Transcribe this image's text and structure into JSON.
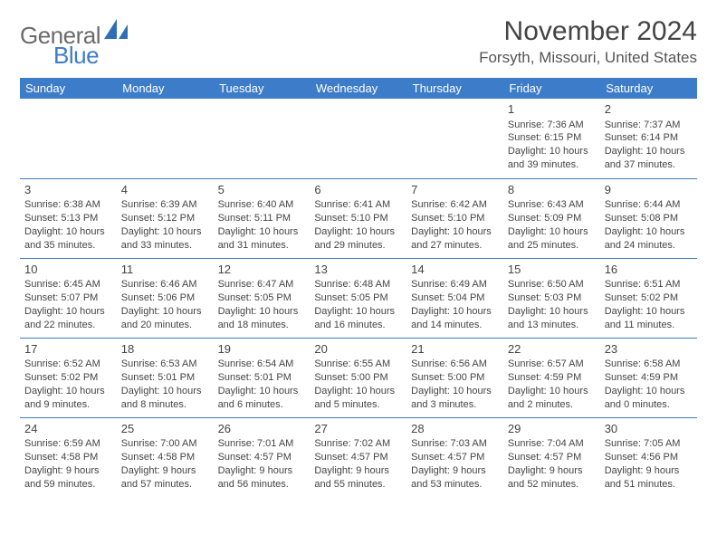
{
  "logo": {
    "general": "General",
    "blue": "Blue"
  },
  "title": "November 2024",
  "location": "Forsyth, Missouri, United States",
  "colors": {
    "header_bg": "#3d7cc9",
    "header_text": "#ffffff",
    "body_text": "#444444",
    "logo_gray": "#6b6b6b",
    "logo_blue": "#3d7cc9",
    "rule": "#3d7cc9",
    "page_bg": "#ffffff"
  },
  "weekdays": [
    "Sunday",
    "Monday",
    "Tuesday",
    "Wednesday",
    "Thursday",
    "Friday",
    "Saturday"
  ],
  "weeks": [
    [
      null,
      null,
      null,
      null,
      null,
      {
        "day": "1",
        "sunrise": "Sunrise: 7:36 AM",
        "sunset": "Sunset: 6:15 PM",
        "daylight": "Daylight: 10 hours and 39 minutes."
      },
      {
        "day": "2",
        "sunrise": "Sunrise: 7:37 AM",
        "sunset": "Sunset: 6:14 PM",
        "daylight": "Daylight: 10 hours and 37 minutes."
      }
    ],
    [
      {
        "day": "3",
        "sunrise": "Sunrise: 6:38 AM",
        "sunset": "Sunset: 5:13 PM",
        "daylight": "Daylight: 10 hours and 35 minutes."
      },
      {
        "day": "4",
        "sunrise": "Sunrise: 6:39 AM",
        "sunset": "Sunset: 5:12 PM",
        "daylight": "Daylight: 10 hours and 33 minutes."
      },
      {
        "day": "5",
        "sunrise": "Sunrise: 6:40 AM",
        "sunset": "Sunset: 5:11 PM",
        "daylight": "Daylight: 10 hours and 31 minutes."
      },
      {
        "day": "6",
        "sunrise": "Sunrise: 6:41 AM",
        "sunset": "Sunset: 5:10 PM",
        "daylight": "Daylight: 10 hours and 29 minutes."
      },
      {
        "day": "7",
        "sunrise": "Sunrise: 6:42 AM",
        "sunset": "Sunset: 5:10 PM",
        "daylight": "Daylight: 10 hours and 27 minutes."
      },
      {
        "day": "8",
        "sunrise": "Sunrise: 6:43 AM",
        "sunset": "Sunset: 5:09 PM",
        "daylight": "Daylight: 10 hours and 25 minutes."
      },
      {
        "day": "9",
        "sunrise": "Sunrise: 6:44 AM",
        "sunset": "Sunset: 5:08 PM",
        "daylight": "Daylight: 10 hours and 24 minutes."
      }
    ],
    [
      {
        "day": "10",
        "sunrise": "Sunrise: 6:45 AM",
        "sunset": "Sunset: 5:07 PM",
        "daylight": "Daylight: 10 hours and 22 minutes."
      },
      {
        "day": "11",
        "sunrise": "Sunrise: 6:46 AM",
        "sunset": "Sunset: 5:06 PM",
        "daylight": "Daylight: 10 hours and 20 minutes."
      },
      {
        "day": "12",
        "sunrise": "Sunrise: 6:47 AM",
        "sunset": "Sunset: 5:05 PM",
        "daylight": "Daylight: 10 hours and 18 minutes."
      },
      {
        "day": "13",
        "sunrise": "Sunrise: 6:48 AM",
        "sunset": "Sunset: 5:05 PM",
        "daylight": "Daylight: 10 hours and 16 minutes."
      },
      {
        "day": "14",
        "sunrise": "Sunrise: 6:49 AM",
        "sunset": "Sunset: 5:04 PM",
        "daylight": "Daylight: 10 hours and 14 minutes."
      },
      {
        "day": "15",
        "sunrise": "Sunrise: 6:50 AM",
        "sunset": "Sunset: 5:03 PM",
        "daylight": "Daylight: 10 hours and 13 minutes."
      },
      {
        "day": "16",
        "sunrise": "Sunrise: 6:51 AM",
        "sunset": "Sunset: 5:02 PM",
        "daylight": "Daylight: 10 hours and 11 minutes."
      }
    ],
    [
      {
        "day": "17",
        "sunrise": "Sunrise: 6:52 AM",
        "sunset": "Sunset: 5:02 PM",
        "daylight": "Daylight: 10 hours and 9 minutes."
      },
      {
        "day": "18",
        "sunrise": "Sunrise: 6:53 AM",
        "sunset": "Sunset: 5:01 PM",
        "daylight": "Daylight: 10 hours and 8 minutes."
      },
      {
        "day": "19",
        "sunrise": "Sunrise: 6:54 AM",
        "sunset": "Sunset: 5:01 PM",
        "daylight": "Daylight: 10 hours and 6 minutes."
      },
      {
        "day": "20",
        "sunrise": "Sunrise: 6:55 AM",
        "sunset": "Sunset: 5:00 PM",
        "daylight": "Daylight: 10 hours and 5 minutes."
      },
      {
        "day": "21",
        "sunrise": "Sunrise: 6:56 AM",
        "sunset": "Sunset: 5:00 PM",
        "daylight": "Daylight: 10 hours and 3 minutes."
      },
      {
        "day": "22",
        "sunrise": "Sunrise: 6:57 AM",
        "sunset": "Sunset: 4:59 PM",
        "daylight": "Daylight: 10 hours and 2 minutes."
      },
      {
        "day": "23",
        "sunrise": "Sunrise: 6:58 AM",
        "sunset": "Sunset: 4:59 PM",
        "daylight": "Daylight: 10 hours and 0 minutes."
      }
    ],
    [
      {
        "day": "24",
        "sunrise": "Sunrise: 6:59 AM",
        "sunset": "Sunset: 4:58 PM",
        "daylight": "Daylight: 9 hours and 59 minutes."
      },
      {
        "day": "25",
        "sunrise": "Sunrise: 7:00 AM",
        "sunset": "Sunset: 4:58 PM",
        "daylight": "Daylight: 9 hours and 57 minutes."
      },
      {
        "day": "26",
        "sunrise": "Sunrise: 7:01 AM",
        "sunset": "Sunset: 4:57 PM",
        "daylight": "Daylight: 9 hours and 56 minutes."
      },
      {
        "day": "27",
        "sunrise": "Sunrise: 7:02 AM",
        "sunset": "Sunset: 4:57 PM",
        "daylight": "Daylight: 9 hours and 55 minutes."
      },
      {
        "day": "28",
        "sunrise": "Sunrise: 7:03 AM",
        "sunset": "Sunset: 4:57 PM",
        "daylight": "Daylight: 9 hours and 53 minutes."
      },
      {
        "day": "29",
        "sunrise": "Sunrise: 7:04 AM",
        "sunset": "Sunset: 4:57 PM",
        "daylight": "Daylight: 9 hours and 52 minutes."
      },
      {
        "day": "30",
        "sunrise": "Sunrise: 7:05 AM",
        "sunset": "Sunset: 4:56 PM",
        "daylight": "Daylight: 9 hours and 51 minutes."
      }
    ]
  ]
}
